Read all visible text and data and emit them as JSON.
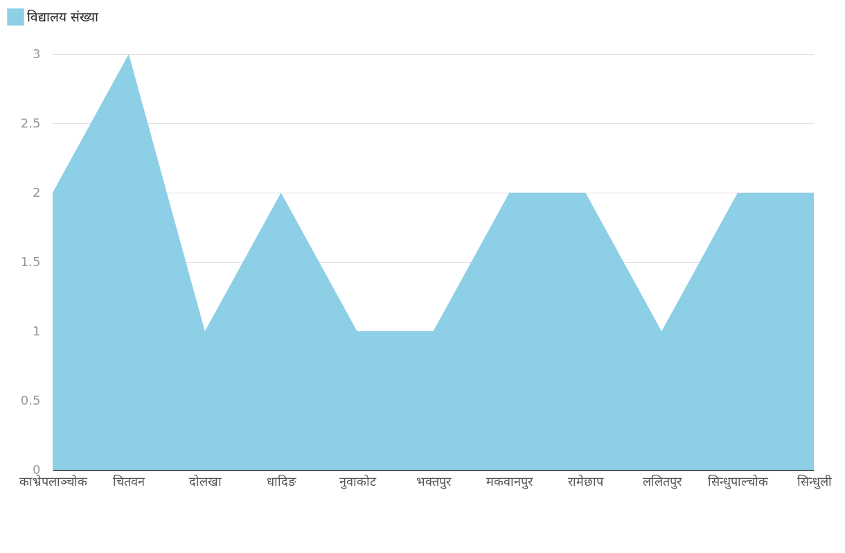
{
  "chart_data": {
    "type": "area",
    "categories": [
      "काभ्रेपलाञ्चोक",
      "चितवन",
      "दोलखा",
      "धादिङ",
      "नुवाकोट",
      "भक्तपुर",
      "मकवानपुर",
      "रामेछाप",
      "ललितपुर",
      "सिन्धुपाल्चोक",
      "सिन्धुली"
    ],
    "series": [
      {
        "name": "विद्यालय संख्या",
        "color": "#8ccfe6",
        "values": [
          2,
          3,
          1,
          2,
          1,
          1,
          2,
          2,
          1,
          2,
          2
        ]
      }
    ],
    "ylim": [
      0,
      3
    ],
    "yticks": [
      0,
      0.5,
      1,
      1.5,
      2,
      2.5,
      3
    ],
    "grid": "y",
    "legend": "top left"
  }
}
